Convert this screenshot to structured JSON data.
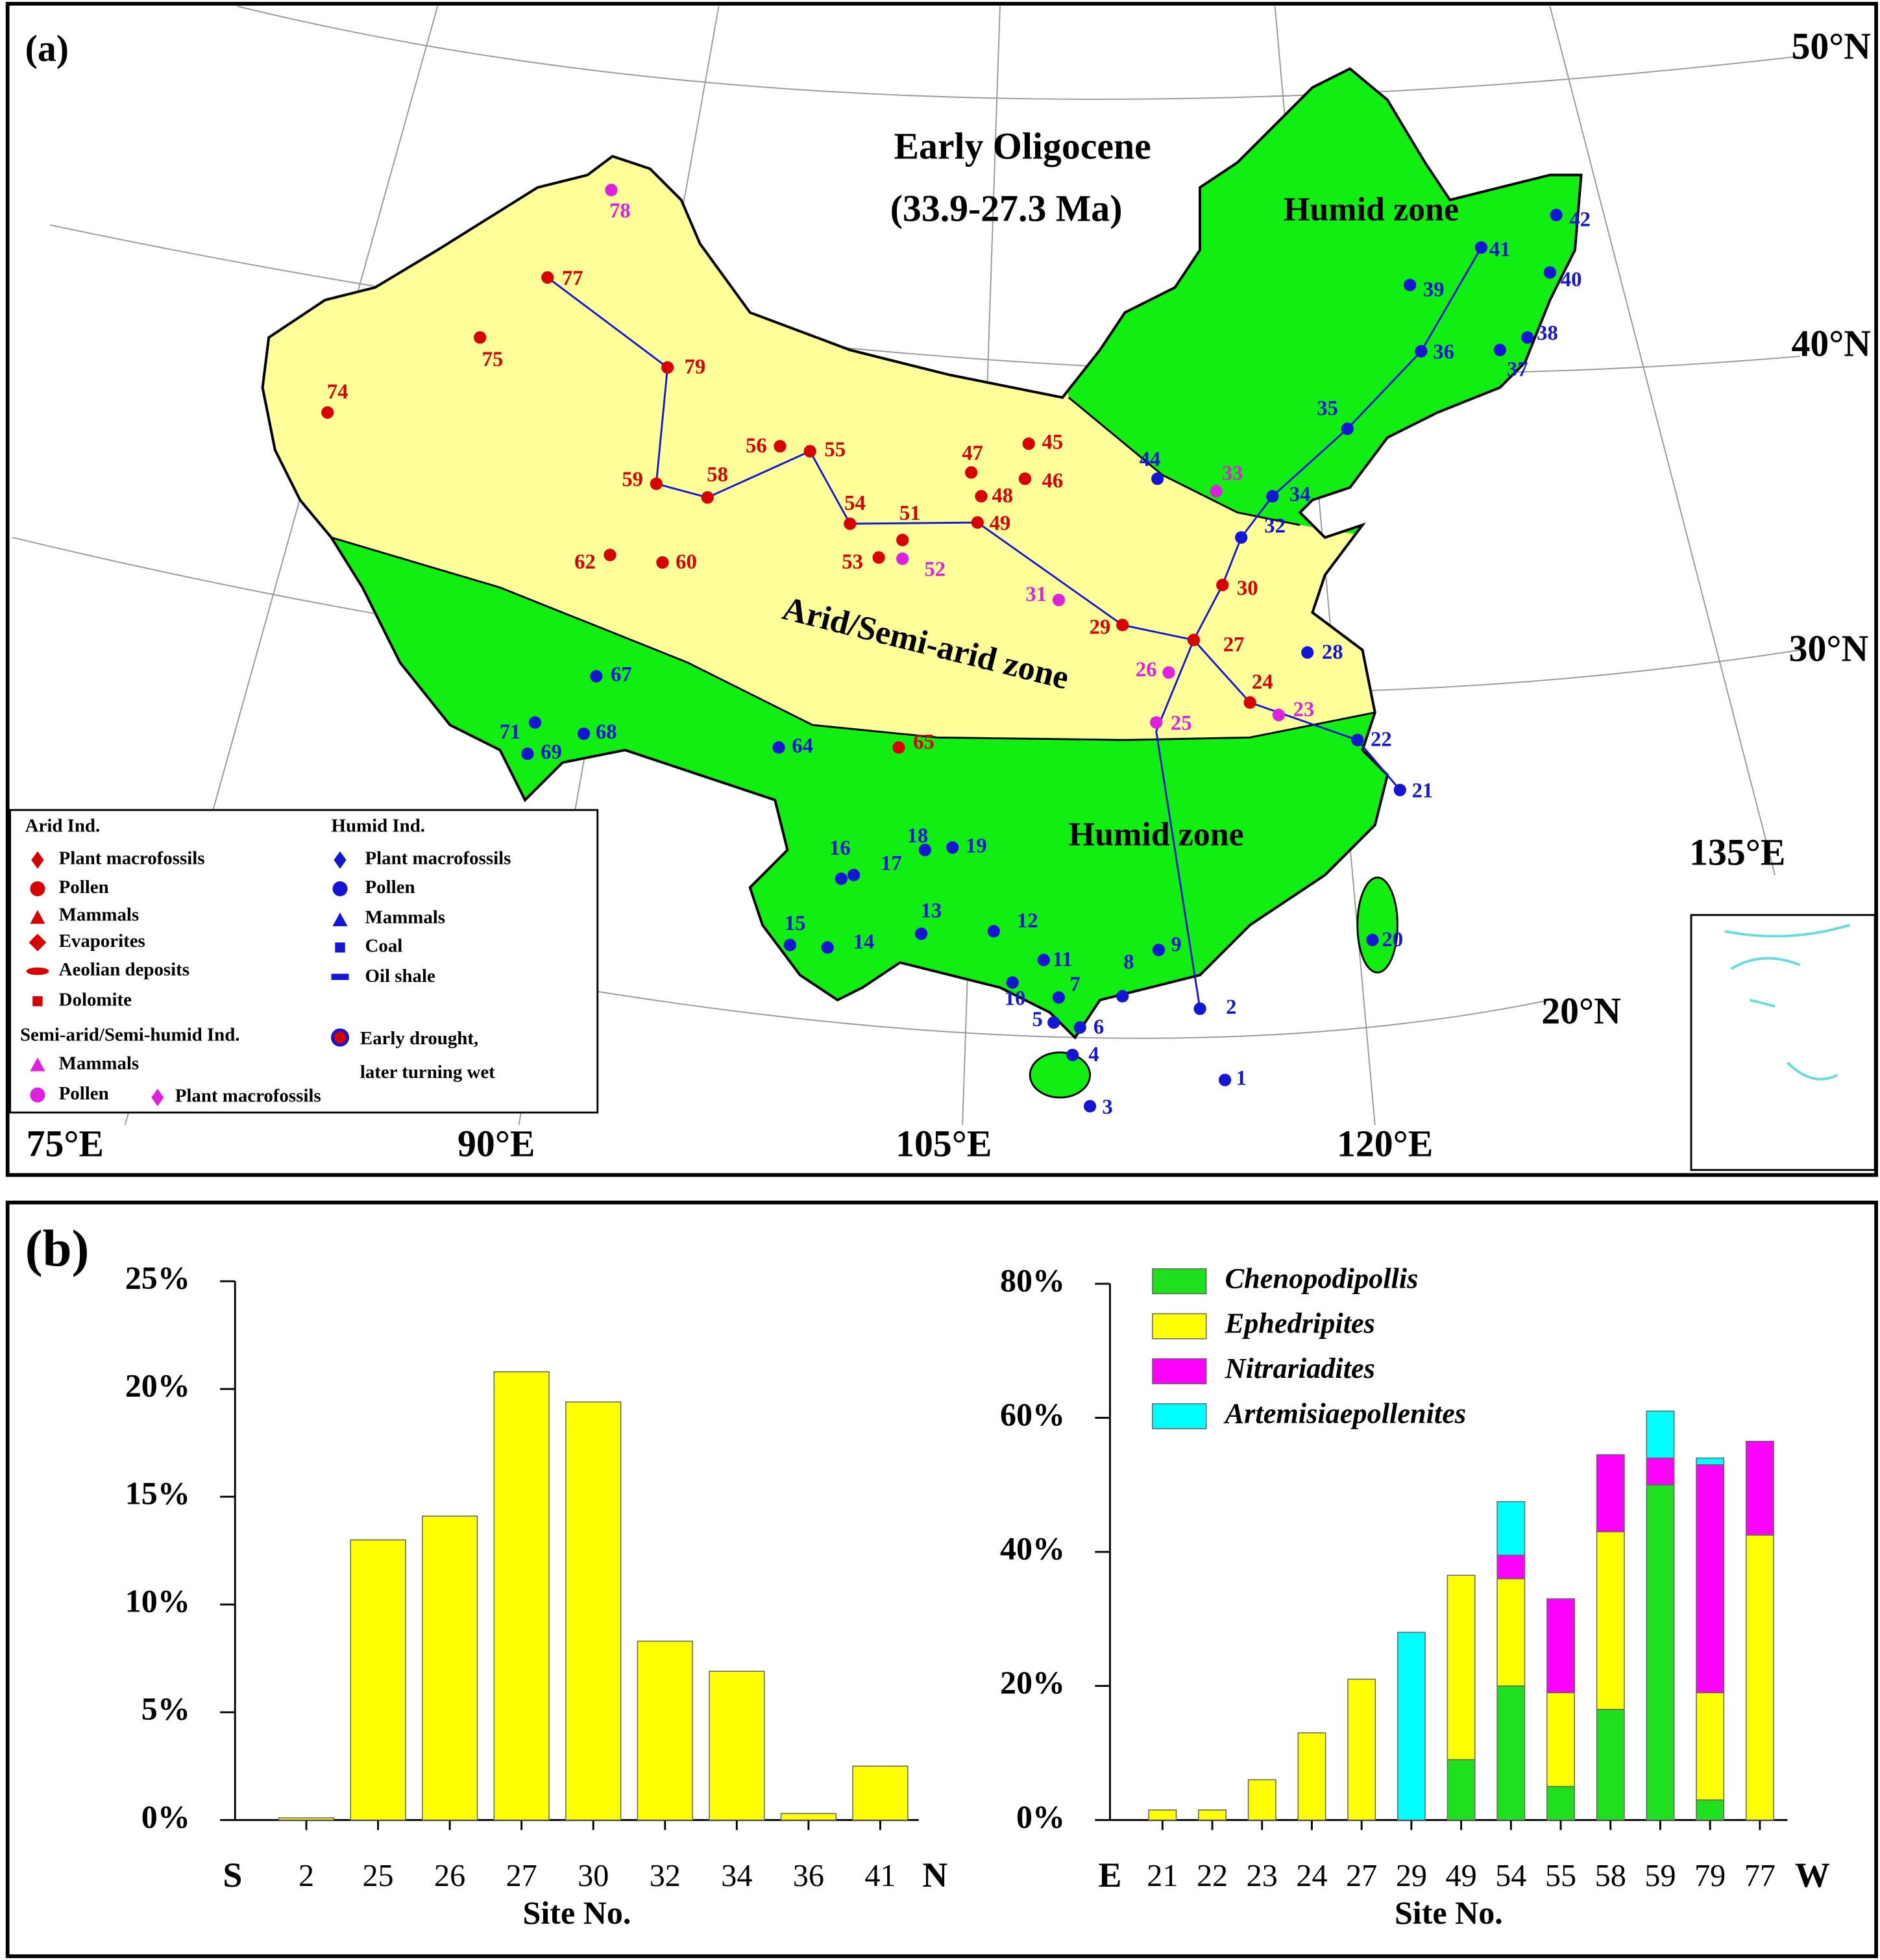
{
  "panel_a": {
    "label": "(a)",
    "title": "Early Oligocene",
    "subtitle": "(33.9-27.3 Ma)",
    "zones": [
      "Humid zone",
      "Arid/Semi-arid zone",
      "Humid zone"
    ],
    "latitudes": [
      "50°N",
      "40°N",
      "30°N",
      "20°N"
    ],
    "longitudes": [
      "75°E",
      "90°E",
      "105°E",
      "120°E",
      "135°E"
    ],
    "legend": {
      "arid_title": "Arid Ind.",
      "arid": [
        "Plant macrofossils",
        "Pollen",
        "Mammals",
        "Evaporites",
        "Aeolian deposits",
        "Dolomite"
      ],
      "semi_title": "Semi-arid/Semi-humid Ind.",
      "semi": [
        "Mammals",
        "Pollen",
        "Plant macrofossils"
      ],
      "humid_title": "Humid Ind.",
      "humid": [
        "Plant macrofossils",
        "Pollen",
        "Mammals",
        "Coal",
        "Oil shale"
      ],
      "transition": [
        "Early drought,",
        "later turning wet"
      ]
    },
    "sites": [
      {
        "label": "1",
        "color": "#1515d5"
      },
      {
        "label": "2",
        "color": "#1515d5"
      },
      {
        "label": "3",
        "color": "#1515d5"
      },
      {
        "label": "4",
        "color": "#1515d5"
      },
      {
        "label": "5",
        "color": "#1515d5"
      },
      {
        "label": "6",
        "color": "#1515d5"
      },
      {
        "label": "7",
        "color": "#1515d5"
      },
      {
        "label": "8",
        "color": "#1515d5"
      },
      {
        "label": "9",
        "color": "#1515d5"
      },
      {
        "label": "10",
        "color": "#1515d5"
      },
      {
        "label": "11",
        "color": "#1515d5"
      },
      {
        "label": "12",
        "color": "#1515d5"
      },
      {
        "label": "13",
        "color": "#1515d5"
      },
      {
        "label": "14",
        "color": "#1515d5"
      },
      {
        "label": "15",
        "color": "#1515d5"
      },
      {
        "label": "16",
        "color": "#1515d5"
      },
      {
        "label": "17",
        "color": "#1515d5"
      },
      {
        "label": "18",
        "color": "#1515d5"
      },
      {
        "label": "19",
        "color": "#1515d5"
      },
      {
        "label": "20",
        "color": "#1515d5"
      },
      {
        "label": "21",
        "color": "#1515d5"
      },
      {
        "label": "22",
        "color": "#1515d5"
      },
      {
        "label": "23",
        "color": "#e020e0"
      },
      {
        "label": "24",
        "color": "#d80000"
      },
      {
        "label": "25",
        "color": "#e020e0"
      },
      {
        "label": "26",
        "color": "#e020e0"
      },
      {
        "label": "27",
        "color": "#d80000"
      },
      {
        "label": "28",
        "color": "#1515d5"
      },
      {
        "label": "29",
        "color": "#d80000"
      },
      {
        "label": "30",
        "color": "#d80000"
      },
      {
        "label": "31",
        "color": "#e020e0"
      },
      {
        "label": "32",
        "color": "#1515d5"
      },
      {
        "label": "33",
        "color": "#e020e0"
      },
      {
        "label": "34",
        "color": "#1515d5"
      },
      {
        "label": "35",
        "color": "#1515d5"
      },
      {
        "label": "36",
        "color": "#1515d5"
      },
      {
        "label": "37",
        "color": "#1515d5"
      },
      {
        "label": "38",
        "color": "#1515d5"
      },
      {
        "label": "39",
        "color": "#1515d5"
      },
      {
        "label": "40",
        "color": "#1515d5"
      },
      {
        "label": "41",
        "color": "#1515d5"
      },
      {
        "label": "42",
        "color": "#1515d5"
      },
      {
        "label": "44",
        "color": "#1515d5"
      },
      {
        "label": "45",
        "color": "#d80000"
      },
      {
        "label": "46",
        "color": "#d80000"
      },
      {
        "label": "47",
        "color": "#d80000"
      },
      {
        "label": "48",
        "color": "#d80000"
      },
      {
        "label": "49",
        "color": "#d80000"
      },
      {
        "label": "51",
        "color": "#d80000"
      },
      {
        "label": "52",
        "color": "#e020e0"
      },
      {
        "label": "53",
        "color": "#d80000"
      },
      {
        "label": "54",
        "color": "#d80000"
      },
      {
        "label": "55",
        "color": "#d80000"
      },
      {
        "label": "56",
        "color": "#d80000"
      },
      {
        "label": "58",
        "color": "#d80000"
      },
      {
        "label": "59",
        "color": "#d80000"
      },
      {
        "label": "60",
        "color": "#d80000"
      },
      {
        "label": "62",
        "color": "#d80000"
      },
      {
        "label": "64",
        "color": "#1515d5"
      },
      {
        "label": "65",
        "color": "#d80000"
      },
      {
        "label": "67",
        "color": "#1515d5"
      },
      {
        "label": "68",
        "color": "#1515d5"
      },
      {
        "label": "69",
        "color": "#1515d5"
      },
      {
        "label": "71",
        "color": "#1515d5"
      },
      {
        "label": "74",
        "color": "#d80000"
      },
      {
        "label": "75",
        "color": "#d80000"
      },
      {
        "label": "77",
        "color": "#d80000"
      },
      {
        "label": "78",
        "color": "#e020e0"
      },
      {
        "label": "79",
        "color": "#d80000"
      }
    ]
  },
  "panel_b": {
    "label": "(b)"
  },
  "chart_data": [
    {
      "type": "bar",
      "x_label": "Site No.",
      "start_label": "S",
      "end_label": "N",
      "categories": [
        "2",
        "25",
        "26",
        "27",
        "30",
        "32",
        "34",
        "36",
        "41"
      ],
      "values": [
        0.1,
        13,
        14.1,
        20.8,
        19.4,
        8.3,
        6.9,
        0.3,
        2.5
      ],
      "color": "#ffff00",
      "ylim": [
        0,
        25
      ],
      "yticks": [
        {
          "value": 0,
          "label": "0%"
        },
        {
          "value": 5,
          "label": "5%"
        },
        {
          "value": 10,
          "label": "10%"
        },
        {
          "value": 15,
          "label": "15%"
        },
        {
          "value": 20,
          "label": "20%"
        },
        {
          "value": 25,
          "label": "25%"
        }
      ]
    },
    {
      "type": "stacked_bar",
      "x_label": "Site No.",
      "start_label": "E",
      "end_label": "W",
      "categories": [
        "21",
        "22",
        "23",
        "24",
        "27",
        "29",
        "49",
        "54",
        "55",
        "58",
        "59",
        "79",
        "77"
      ],
      "series": [
        {
          "name": "Chenopodipollis",
          "color": "#1ee01e",
          "values": [
            0,
            0,
            0,
            0,
            0,
            0,
            9,
            20,
            5,
            16.5,
            50,
            3,
            0
          ]
        },
        {
          "name": "Ephedripites",
          "color": "#ffff00",
          "values": [
            1.5,
            1.5,
            6,
            13,
            21,
            0,
            27.5,
            16,
            14,
            26.5,
            0,
            16,
            42.5
          ]
        },
        {
          "name": "Nitrariadites",
          "color": "#ff00ff",
          "values": [
            0,
            0,
            0,
            0,
            0,
            0,
            0,
            3.5,
            14,
            11.5,
            4,
            34,
            14
          ]
        },
        {
          "name": "Artemisiaepollenites",
          "color": "#00ffff",
          "values": [
            0,
            0,
            0,
            0,
            0,
            28,
            0,
            8,
            0,
            0,
            7,
            1,
            0
          ]
        }
      ],
      "ylim": [
        0,
        80
      ],
      "yticks": [
        {
          "value": 0,
          "label": "0%"
        },
        {
          "value": 20,
          "label": "20%"
        },
        {
          "value": 40,
          "label": "40%"
        },
        {
          "value": 60,
          "label": "60%"
        },
        {
          "value": 80,
          "label": "80%"
        }
      ]
    }
  ]
}
